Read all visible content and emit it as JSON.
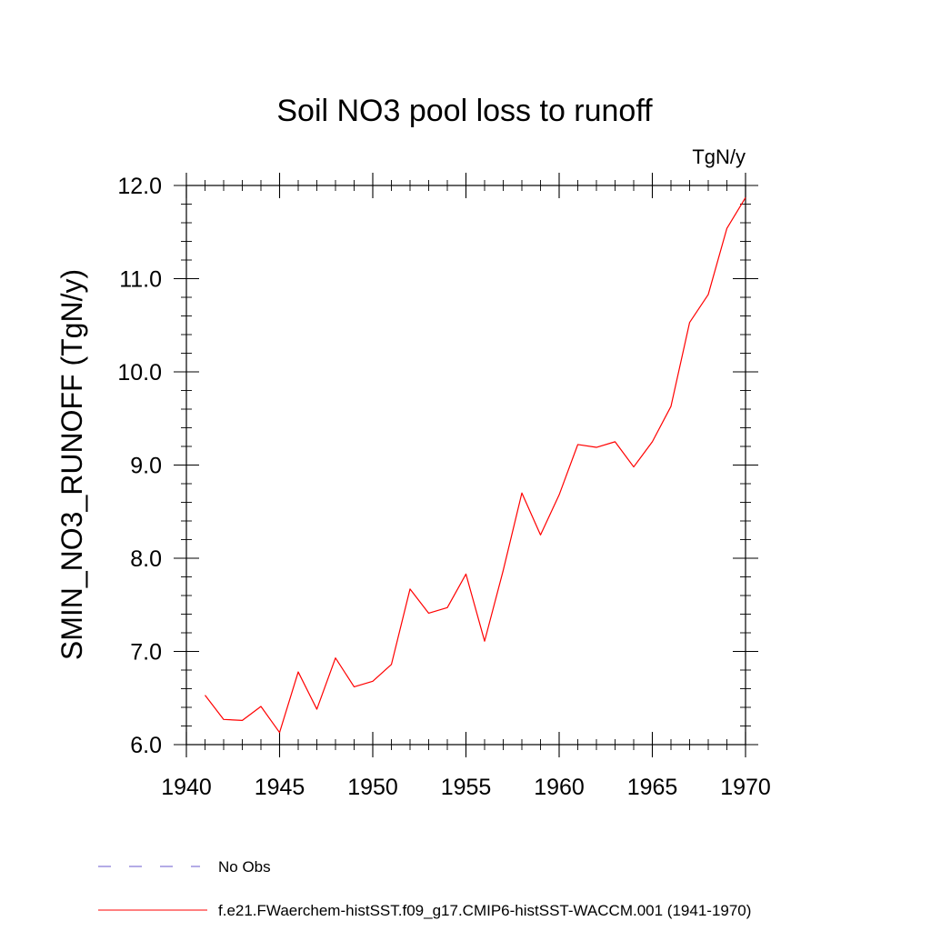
{
  "chart_data": {
    "type": "line",
    "title": "Soil NO3 pool loss to runoff",
    "units": "TgN/y",
    "xlabel": "",
    "ylabel": "SMIN_NO3_RUNOFF  (TgN/y)",
    "xlim": [
      1940,
      1970
    ],
    "ylim": [
      6.0,
      12.0
    ],
    "x_ticks": [
      1940,
      1945,
      1950,
      1955,
      1960,
      1965,
      1970
    ],
    "x_tick_labels": [
      "1940",
      "1945",
      "1950",
      "1955",
      "1960",
      "1965",
      "1970"
    ],
    "y_ticks": [
      6.0,
      7.0,
      8.0,
      9.0,
      10.0,
      11.0,
      12.0
    ],
    "y_tick_labels": [
      "6.0",
      "7.0",
      "8.0",
      "9.0",
      "10.0",
      "11.0",
      "12.0"
    ],
    "grid": false,
    "legend_position": "bottom",
    "series": [
      {
        "name": "f.e21.FWaerchem-histSST.f09_g17.CMIP6-histSST-WACCM.001 (1941-1970)",
        "color": "#ff0000",
        "dash": "solid",
        "x": [
          1941,
          1942,
          1943,
          1944,
          1945,
          1946,
          1947,
          1948,
          1949,
          1950,
          1951,
          1952,
          1953,
          1954,
          1955,
          1956,
          1957,
          1958,
          1959,
          1960,
          1961,
          1962,
          1963,
          1964,
          1965,
          1966,
          1967,
          1968,
          1969,
          1970
        ],
        "values": [
          6.53,
          6.27,
          6.26,
          6.41,
          6.13,
          6.78,
          6.38,
          6.93,
          6.62,
          6.68,
          6.86,
          7.67,
          7.41,
          7.47,
          7.83,
          7.11,
          7.87,
          8.7,
          8.25,
          8.68,
          9.22,
          9.19,
          9.25,
          8.98,
          9.25,
          9.63,
          10.53,
          10.83,
          11.54,
          11.87
        ]
      }
    ],
    "legend": [
      {
        "label": "No Obs",
        "color": "#6a5acd",
        "dash": "dashed"
      },
      {
        "label": "f.e21.FWaerchem-histSST.f09_g17.CMIP6-histSST-WACCM.001 (1941-1970)",
        "color": "#ff0000",
        "dash": "solid"
      }
    ]
  }
}
